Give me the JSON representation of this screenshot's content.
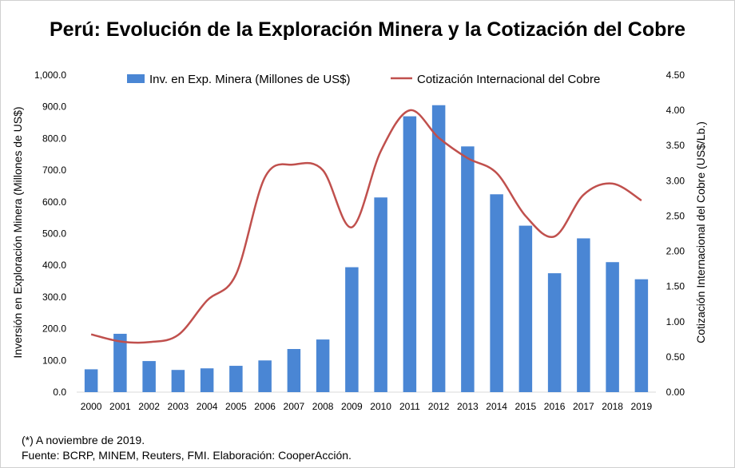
{
  "chart_data": {
    "type": "bar",
    "title": "Perú: Evolución de la Exploración Minera y la Cotización del Cobre",
    "categories": [
      "2000",
      "2001",
      "2002",
      "2003",
      "2004",
      "2005",
      "2006",
      "2007",
      "2008",
      "2009",
      "2010",
      "2011",
      "2012",
      "2013",
      "2014",
      "2015",
      "2016",
      "2017",
      "2018",
      "2019"
    ],
    "series": [
      {
        "name": "Inv. en Exp. Minera (Millones de US$)",
        "type": "bar",
        "axis": "left",
        "color": "#4a86d4",
        "values": [
          72,
          184,
          98,
          70,
          75,
          83,
          100,
          136,
          166,
          394,
          614,
          870,
          905,
          775,
          624,
          525,
          375,
          485,
          410,
          356
        ]
      },
      {
        "name": "Cotización Internacional del Cobre",
        "type": "line",
        "axis": "right",
        "color": "#c0504d",
        "values": [
          0.82,
          0.72,
          0.71,
          0.81,
          1.3,
          1.67,
          3.05,
          3.23,
          3.15,
          2.34,
          3.42,
          4.0,
          3.61,
          3.32,
          3.11,
          2.5,
          2.21,
          2.8,
          2.96,
          2.72
        ]
      }
    ],
    "ylabel": "Inversión en Exploración Minera (Millones de US$)",
    "ylabel_right": "Cotización Internacional del Cobre (US$/Lb.)",
    "ylim": [
      0,
      1000
    ],
    "ylim_right": [
      0,
      4.5
    ],
    "yticks": [
      "0.0",
      "100.0",
      "200.0",
      "300.0",
      "400.0",
      "500.0",
      "600.0",
      "700.0",
      "800.0",
      "900.0",
      "1,000.0"
    ],
    "yticks_right": [
      "0.00",
      "0.50",
      "1.00",
      "1.50",
      "2.00",
      "2.50",
      "3.00",
      "3.50",
      "4.00",
      "4.50"
    ],
    "grid": false,
    "legend": "top"
  },
  "notes": {
    "footnote": "(*) A noviembre de 2019.",
    "source": "Fuente: BCRP, MINEM, Reuters, FMI. Elaboración: CooperAcción."
  }
}
